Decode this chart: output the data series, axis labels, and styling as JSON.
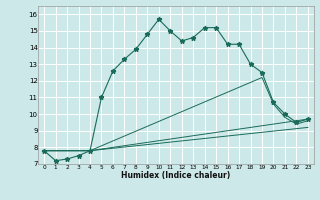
{
  "xlabel": "Humidex (Indice chaleur)",
  "ylabel": "",
  "bg_color": "#cce8e8",
  "grid_color": "#ffffff",
  "line_color": "#1a6b5a",
  "xlim": [
    -0.5,
    23.5
  ],
  "ylim": [
    7,
    16.5
  ],
  "xticks": [
    0,
    1,
    2,
    3,
    4,
    5,
    6,
    7,
    8,
    9,
    10,
    11,
    12,
    13,
    14,
    15,
    16,
    17,
    18,
    19,
    20,
    21,
    22,
    23
  ],
  "yticks": [
    7,
    8,
    9,
    10,
    11,
    12,
    13,
    14,
    15,
    16
  ],
  "series": [
    {
      "x": [
        0,
        1,
        2,
        3,
        4,
        5,
        6,
        7,
        8,
        9,
        10,
        11,
        12,
        13,
        14,
        15,
        16,
        17,
        18,
        19,
        20,
        21,
        22,
        23
      ],
      "y": [
        7.8,
        7.2,
        7.3,
        7.5,
        7.8,
        11.0,
        12.6,
        13.3,
        13.9,
        14.8,
        15.7,
        15.0,
        14.4,
        14.6,
        15.2,
        15.2,
        14.2,
        14.2,
        13.0,
        12.5,
        10.7,
        10.0,
        9.5,
        9.7
      ]
    },
    {
      "x": [
        0,
        4,
        19,
        20,
        21,
        22,
        23
      ],
      "y": [
        7.8,
        7.8,
        12.2,
        10.6,
        9.8,
        9.4,
        9.6
      ]
    },
    {
      "x": [
        0,
        4,
        23
      ],
      "y": [
        7.8,
        7.8,
        9.7
      ]
    },
    {
      "x": [
        0,
        4,
        23
      ],
      "y": [
        7.8,
        7.8,
        9.2
      ]
    }
  ]
}
